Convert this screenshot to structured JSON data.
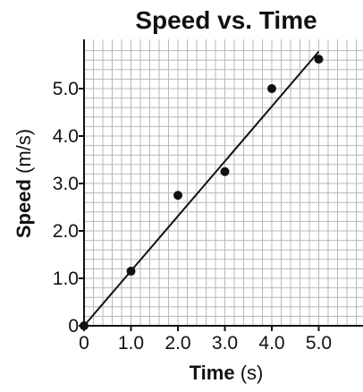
{
  "chart_data": {
    "type": "scatter",
    "title": "Speed vs. Time",
    "xlabel": {
      "bold": "Time",
      "unit": "(s)"
    },
    "ylabel": {
      "bold": "Speed",
      "unit": "(m/s)"
    },
    "xlim": [
      0,
      5.9
    ],
    "ylim": [
      0,
      5.9
    ],
    "grid": true,
    "grid_step": 0.2,
    "x_ticks": [
      0,
      1,
      2,
      3,
      4,
      5
    ],
    "x_tick_labels": [
      "0",
      "1.0",
      "2.0",
      "3.0",
      "4.0",
      "5.0"
    ],
    "y_ticks": [
      0,
      1,
      2,
      3,
      4,
      5
    ],
    "y_tick_labels": [
      "0",
      "1.0",
      "2.0",
      "3.0",
      "4.0",
      "5.0"
    ],
    "points": [
      {
        "x": 0,
        "y": 0
      },
      {
        "x": 1.0,
        "y": 1.15
      },
      {
        "x": 2.0,
        "y": 2.75
      },
      {
        "x": 3.0,
        "y": 3.25
      },
      {
        "x": 4.0,
        "y": 5.0
      },
      {
        "x": 5.0,
        "y": 5.62
      }
    ],
    "fit_line": {
      "x": [
        0,
        5.0
      ],
      "y": [
        0,
        5.78
      ]
    },
    "colors": {
      "marks": "#111111",
      "grid": "#b8b8b8"
    }
  }
}
